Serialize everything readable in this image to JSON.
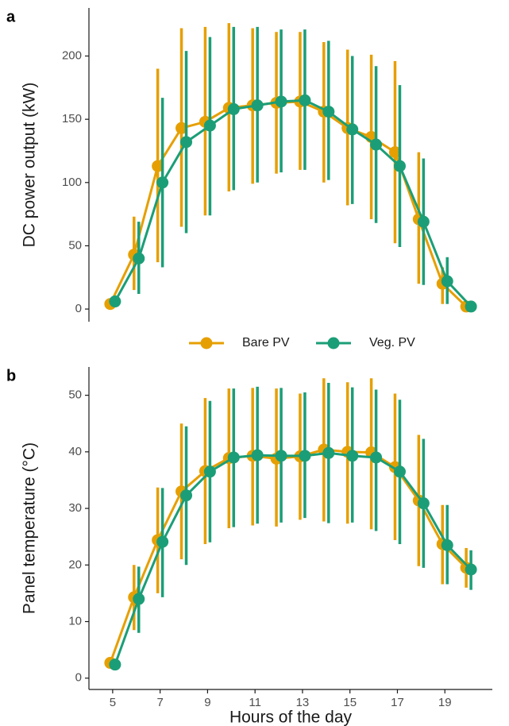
{
  "chart_data": [
    {
      "type": "line",
      "panel": "a",
      "ylabel": "DC power output (kW)",
      "x": [
        5,
        6,
        7,
        8,
        9,
        10,
        11,
        12,
        13,
        14,
        15,
        16,
        17,
        18,
        19,
        20
      ],
      "xlim": [
        4,
        21
      ],
      "ylim": [
        -10,
        238
      ],
      "yticks": [
        0,
        50,
        100,
        150,
        200
      ],
      "series": [
        {
          "name": "Bare PV",
          "color": "#E69F00",
          "values": [
            4,
            43,
            113,
            143,
            148,
            159,
            161,
            163,
            164,
            156,
            143,
            136,
            124,
            71,
            20,
            2
          ],
          "lower": [
            0,
            15,
            37,
            65,
            74,
            93,
            99,
            107,
            110,
            100,
            82,
            71,
            52,
            20,
            4,
            0
          ],
          "upper": [
            8,
            73,
            190,
            222,
            223,
            226,
            222,
            219,
            219,
            211,
            205,
            201,
            196,
            124,
            33,
            4
          ]
        },
        {
          "name": "Veg. PV",
          "color": "#1B9E77",
          "values": [
            6,
            40,
            100,
            132,
            145,
            158,
            161,
            164,
            165,
            156,
            142,
            130,
            113,
            69,
            22,
            2
          ],
          "lower": [
            2,
            12,
            33,
            60,
            74,
            94,
            100,
            108,
            110,
            102,
            83,
            68,
            49,
            19,
            4,
            0
          ],
          "upper": [
            10,
            69,
            167,
            204,
            215,
            223,
            223,
            221,
            221,
            212,
            200,
            192,
            177,
            119,
            41,
            4
          ]
        }
      ]
    },
    {
      "type": "line",
      "panel": "b",
      "ylabel": "Panel temperature (°C)",
      "xlabel": "Hours of the day",
      "x": [
        5,
        6,
        7,
        8,
        9,
        10,
        11,
        12,
        13,
        14,
        15,
        16,
        17,
        18,
        19,
        20
      ],
      "xlim": [
        4,
        21
      ],
      "xticks": [
        5,
        7,
        9,
        11,
        13,
        15,
        17,
        19
      ],
      "ylim": [
        -2,
        55
      ],
      "yticks": [
        0,
        10,
        20,
        30,
        40,
        50
      ],
      "series": [
        {
          "color": "#E69F00",
          "values": [
            2.7,
            14.3,
            24.4,
            33.0,
            36.6,
            38.9,
            39.3,
            38.8,
            39.2,
            40.4,
            40.0,
            39.9,
            37.3,
            31.4,
            23.7,
            19.5
          ],
          "lower": [
            2,
            8.5,
            15,
            21,
            23.7,
            26.5,
            27,
            26.8,
            28,
            27.7,
            27.3,
            26.3,
            24.4,
            19.8,
            16.6,
            16
          ],
          "upper": [
            3.5,
            20,
            33.7,
            45,
            49.5,
            51.2,
            51.3,
            51.2,
            50.3,
            53,
            52.3,
            53,
            50.3,
            43,
            30.6,
            23
          ]
        },
        {
          "color": "#1B9E77",
          "values": [
            2.4,
            14.0,
            24.1,
            32.3,
            36.5,
            39.0,
            39.4,
            39.3,
            39.3,
            39.8,
            39.3,
            39.0,
            36.5,
            30.9,
            23.5,
            19.2
          ],
          "lower": [
            1.8,
            8,
            14.3,
            20,
            24,
            26.7,
            27.3,
            27.5,
            28.3,
            27.4,
            27.5,
            26,
            23.7,
            19.5,
            16.6,
            15.6
          ],
          "upper": [
            3,
            19.7,
            33.6,
            44.5,
            49,
            51.2,
            51.5,
            51.3,
            50.5,
            52.2,
            51.4,
            51,
            49.2,
            42.3,
            30.6,
            22.6
          ]
        }
      ]
    }
  ]
}
